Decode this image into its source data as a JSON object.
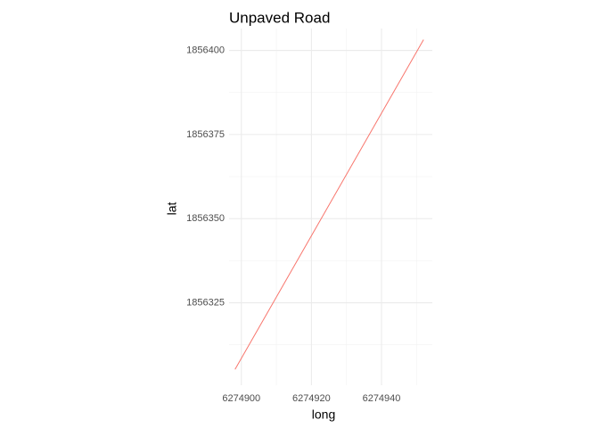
{
  "chart_data": {
    "type": "line",
    "title": "Unpaved Road",
    "xlabel": "long",
    "ylabel": "lat",
    "xlim": [
      6274896.5,
      6274954.5
    ],
    "ylim": [
      1856300.5,
      1856406.5
    ],
    "x_major_ticks": [
      6274900,
      6274920,
      6274940
    ],
    "x_minor_ticks": [
      6274910,
      6274930,
      6274950
    ],
    "y_major_ticks": [
      1856325,
      1856350,
      1856375,
      1856400
    ],
    "y_minor_ticks": [
      1856312.5,
      1856337.5,
      1856362.5,
      1856387.5
    ],
    "x_tick_labels": [
      "6274900",
      "6274920",
      "6274940"
    ],
    "y_tick_labels": [
      "1856325",
      "1856350",
      "1856375",
      "1856400"
    ],
    "legend": "none",
    "grid": true,
    "series": [
      {
        "name": "Unpaved Road",
        "color": "#f8766d",
        "x": [
          6274898.2,
          6274952.0
        ],
        "y": [
          1856305.2,
          1856403.2
        ]
      }
    ]
  }
}
